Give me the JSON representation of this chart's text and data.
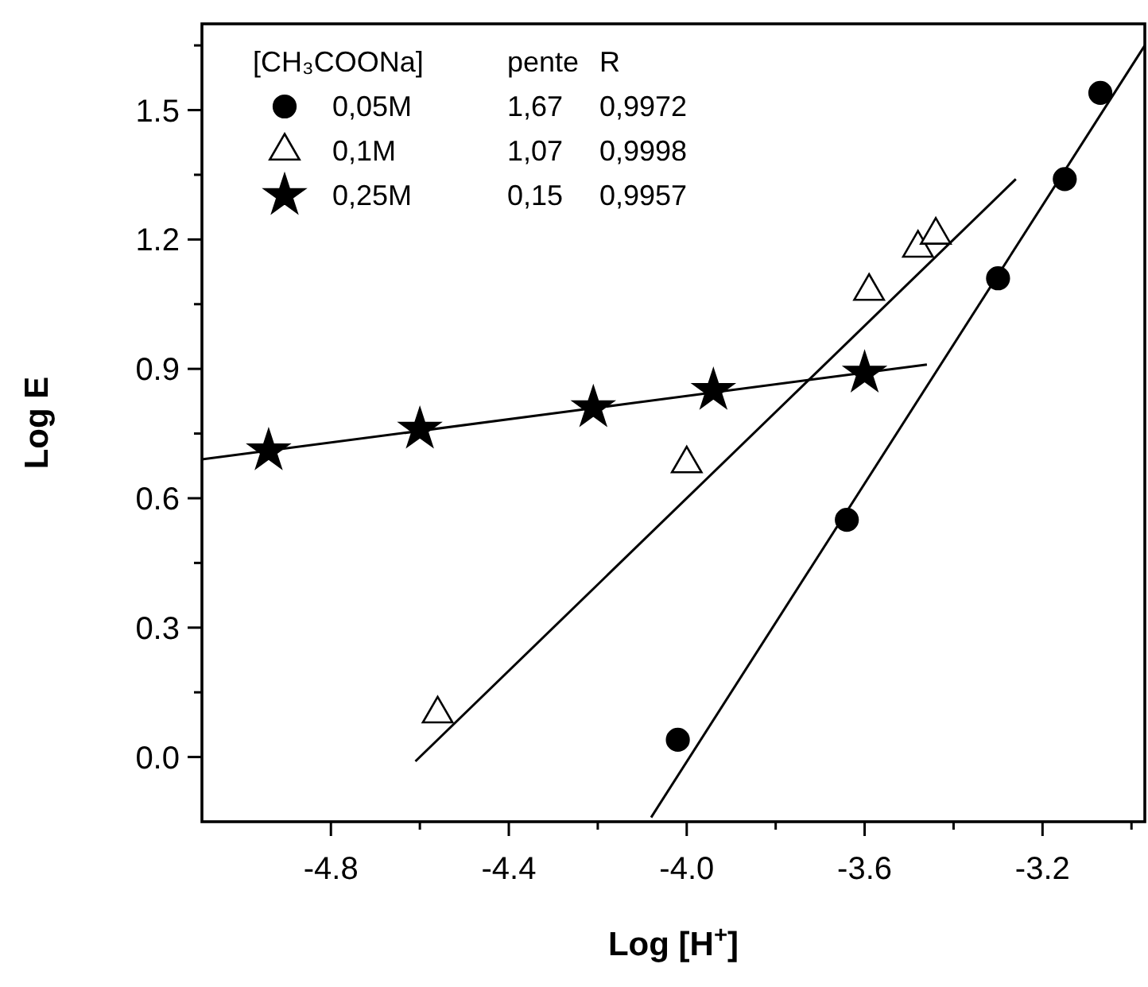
{
  "chart_data": {
    "type": "scatter",
    "xlabel": "Log [H$^{+}$]",
    "ylabel": "Log E",
    "legend_title": "[CH₃COONa]",
    "legend": "top left",
    "annotations": [
      "pente",
      "R",
      "1,67",
      "0,9972",
      "1,07",
      "0,9998",
      "0,15",
      "0,9957"
    ],
    "xlim": [
      -5.09,
      -2.97
    ],
    "ylim": [
      -0.15,
      1.7
    ],
    "xticks": [
      -4.8,
      {
        "value": -4.6,
        "label": null
      },
      -4.4,
      {
        "value": -4.2,
        "label": null
      },
      {
        "value": -4.0,
        "label": "-4.0"
      },
      {
        "value": -3.8,
        "label": null
      },
      -3.6,
      {
        "value": -3.4,
        "label": null
      },
      -3.2,
      {
        "value": -3.0,
        "label": null
      }
    ],
    "yticks": [
      {
        "value": 0,
        "label": "0.0"
      },
      {
        "value": 0.15,
        "label": null
      },
      0.3,
      {
        "value": 0.45,
        "label": null
      },
      0.6,
      {
        "value": 0.75,
        "label": null
      },
      0.9,
      {
        "value": 1.05,
        "label": null
      },
      1.2,
      {
        "value": 1.35,
        "label": null
      },
      1.5,
      {
        "value": 1.65,
        "label": null
      }
    ],
    "series": [
      {
        "name": "0,05M",
        "color": "#000000",
        "marker": "circle",
        "x": [
          -4.02,
          -3.64,
          -3.3,
          -3.15,
          -3.07
        ],
        "values": [
          0.04,
          0.55,
          1.11,
          1.34,
          1.54
        ]
      },
      {
        "name": "0,1M",
        "color": "#000000",
        "marker": "triangle",
        "x": [
          -4.56,
          -4.0,
          -3.59,
          -3.48,
          -3.44
        ],
        "values": [
          0.1,
          0.68,
          1.08,
          1.18,
          1.21
        ]
      },
      {
        "name": "0,25M",
        "color": "#000000",
        "marker": "star",
        "x": [
          -4.94,
          -4.6,
          -4.21,
          -3.94,
          -3.6
        ],
        "values": [
          0.71,
          0.76,
          0.81,
          0.85,
          0.89
        ]
      },
      {
        "type": "line",
        "color": "#000000",
        "x": [
          -4.08,
          -2.97
        ],
        "values": [
          -0.14,
          1.65
        ]
      },
      {
        "type": "line",
        "color": "#000000",
        "x": [
          -4.61,
          -3.26
        ],
        "values": [
          -0.01,
          1.34
        ]
      },
      {
        "type": "line",
        "color": "#000000",
        "x": [
          -5.09,
          -3.46
        ],
        "values": [
          0.69,
          0.91
        ]
      }
    ]
  }
}
